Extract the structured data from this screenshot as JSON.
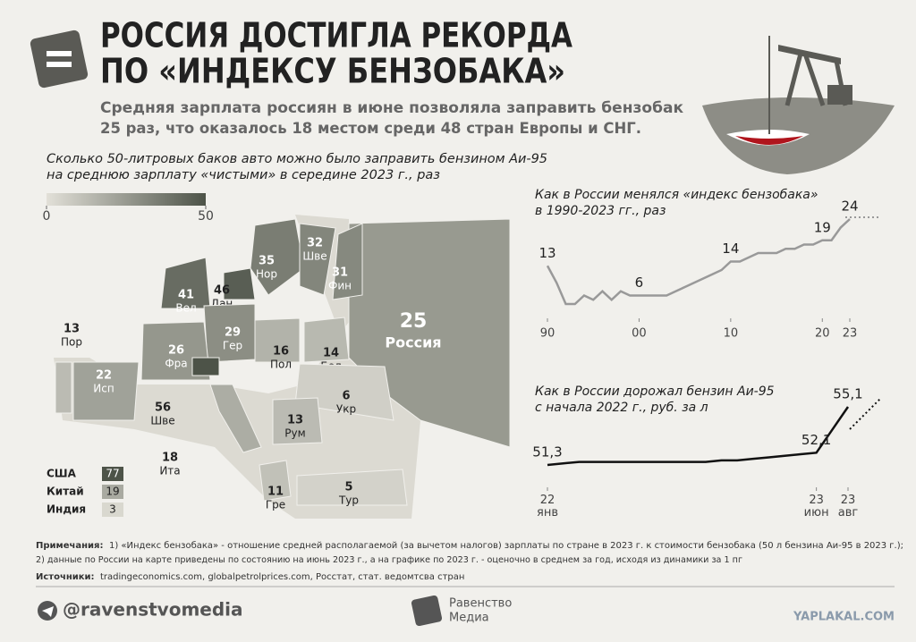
{
  "header": {
    "title_lines": [
      "РОССИЯ ДОСТИГЛА РЕКОРДА",
      "ПО «ИНДЕКСУ БЕНЗОБАКА»"
    ],
    "subtitle_lines": [
      "Средняя зарплата россиян в июне позволяла заправить бензобак",
      "25 раз, что оказалось 18 местом среди 48 стран Европы и СНГ."
    ]
  },
  "map": {
    "title_lines": [
      "Сколько 50-литровых баков авто можно было заправить бензином Аи-95",
      "на среднюю зарплату «чистыми» в середине 2023 г., раз"
    ],
    "colorbar_ticks": [
      0,
      50
    ],
    "countries": [
      {
        "name": "Россия",
        "value": 25
      },
      {
        "name": "Нор",
        "value": 35
      },
      {
        "name": "Шве",
        "value": 32
      },
      {
        "name": "Фин",
        "value": 31
      },
      {
        "name": "Вел",
        "value": 41
      },
      {
        "name": "Дан",
        "value": 46
      },
      {
        "name": "Гер",
        "value": 29
      },
      {
        "name": "Фра",
        "value": 26
      },
      {
        "name": "Исп",
        "value": 22
      },
      {
        "name": "Пор",
        "value": 13
      },
      {
        "name": "Пол",
        "value": 16
      },
      {
        "name": "Бел",
        "value": 14
      },
      {
        "name": "Укр",
        "value": 6
      },
      {
        "name": "Шве",
        "value": 56
      },
      {
        "name": "Рум",
        "value": 13
      },
      {
        "name": "Ита",
        "value": 18
      },
      {
        "name": "Гре",
        "value": 11
      },
      {
        "name": "Тур",
        "value": 5
      }
    ],
    "other_countries": [
      {
        "name": "США",
        "value": 77
      },
      {
        "name": "Китай",
        "value": 19
      },
      {
        "name": "Индия",
        "value": 3
      }
    ]
  },
  "chart_data": [
    {
      "type": "line",
      "title_lines": [
        "Как в России менялся «индекс бензобака»",
        "в 1990-2023 гг., раз"
      ],
      "color": "#999999",
      "x": [
        1990,
        1991,
        1992,
        1993,
        1994,
        1995,
        1996,
        1997,
        1998,
        1999,
        2000,
        2001,
        2002,
        2003,
        2004,
        2005,
        2006,
        2007,
        2008,
        2009,
        2010,
        2011,
        2012,
        2013,
        2014,
        2015,
        2016,
        2017,
        2018,
        2019,
        2020,
        2021,
        2022,
        2023
      ],
      "values": [
        13,
        9,
        4,
        4,
        6,
        5,
        7,
        5,
        7,
        6,
        6,
        6,
        6,
        6,
        7,
        8,
        9,
        10,
        11,
        12,
        14,
        14,
        15,
        16,
        16,
        16,
        17,
        17,
        18,
        18,
        19,
        19,
        22,
        24
      ],
      "xlim": [
        1990,
        2023
      ],
      "xticks": [
        {
          "value": 1990,
          "label": "90"
        },
        {
          "value": 2000,
          "label": "00"
        },
        {
          "value": 2010,
          "label": "10"
        },
        {
          "value": 2020,
          "label": "20"
        },
        {
          "value": 2023,
          "label": "23"
        }
      ]
    },
    {
      "type": "line",
      "title_lines": [
        "Как в России дорожал бензин Аи-95",
        "с начала 2022 г., руб. за л"
      ],
      "color": "#111111",
      "x": [
        "2022-01",
        "2022-02",
        "2022-03",
        "2022-04",
        "2022-05",
        "2022-06",
        "2022-07",
        "2022-08",
        "2022-09",
        "2022-10",
        "2022-11",
        "2022-12",
        "2023-01",
        "2023-02",
        "2023-03",
        "2023-04",
        "2023-05",
        "2023-06",
        "2023-07",
        "2023-08"
      ],
      "values": [
        51.3,
        51.4,
        51.5,
        51.5,
        51.5,
        51.5,
        51.5,
        51.5,
        51.5,
        51.5,
        51.5,
        51.6,
        51.6,
        51.7,
        51.8,
        51.9,
        52.0,
        52.1,
        53.6,
        55.1
      ],
      "value_labels": [
        "51,3",
        null,
        null,
        null,
        null,
        null,
        null,
        null,
        null,
        null,
        null,
        null,
        null,
        null,
        null,
        null,
        null,
        "52,1",
        null,
        "55,1"
      ],
      "xticks": [
        {
          "value": "2022-01",
          "label": "22 янв"
        },
        {
          "value": "2023-06",
          "label": "23 июн"
        },
        {
          "value": "2023-08",
          "label": "23 авг"
        }
      ]
    }
  ],
  "notes": {
    "label": "Примечания:",
    "lines": [
      "1) «Индекс бензобака» - отношение средней располагаемой (за вычетом налогов) зарплаты по стране в 2023 г. к стоимости бензобака (50 л бензина Аи-95 в 2023 г.);",
      "2) данные по России на карте приведены по состоянию на июнь 2023 г., а на графике по 2023 г. - оценочно в среднем за год, исходя из динамики за 1 пг"
    ],
    "sources_label": "Источники:",
    "sources": "tradingeconomics.com, globalpetrolprices.com, Росстат, стат. ведомтсва стран"
  },
  "footer": {
    "handle": "@ravenstvomedia",
    "brand_lines": [
      "Равенство",
      "Медиа"
    ],
    "watermark": "YAPLAKAL.COM"
  }
}
